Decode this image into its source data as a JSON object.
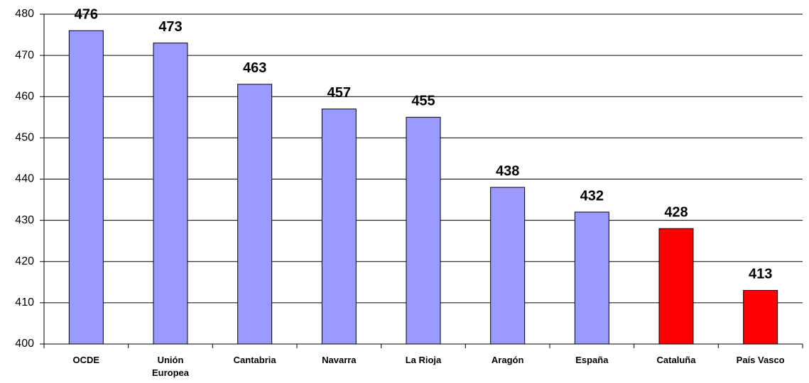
{
  "chart_data": {
    "type": "bar",
    "categories": [
      "OCDE",
      "Unión Europea",
      "Cantabria",
      "Navarra",
      "La Rioja",
      "Aragón",
      "España",
      "Cataluña",
      "País Vasco"
    ],
    "values": [
      476,
      473,
      463,
      457,
      455,
      438,
      432,
      428,
      413
    ],
    "colors": [
      "#9999ff",
      "#9999ff",
      "#9999ff",
      "#9999ff",
      "#9999ff",
      "#9999ff",
      "#9999ff",
      "#ff0000",
      "#ff0000"
    ],
    "ylim": [
      400,
      480
    ],
    "yticks": [
      400,
      410,
      420,
      430,
      440,
      450,
      460,
      470,
      480
    ],
    "grid": true
  }
}
